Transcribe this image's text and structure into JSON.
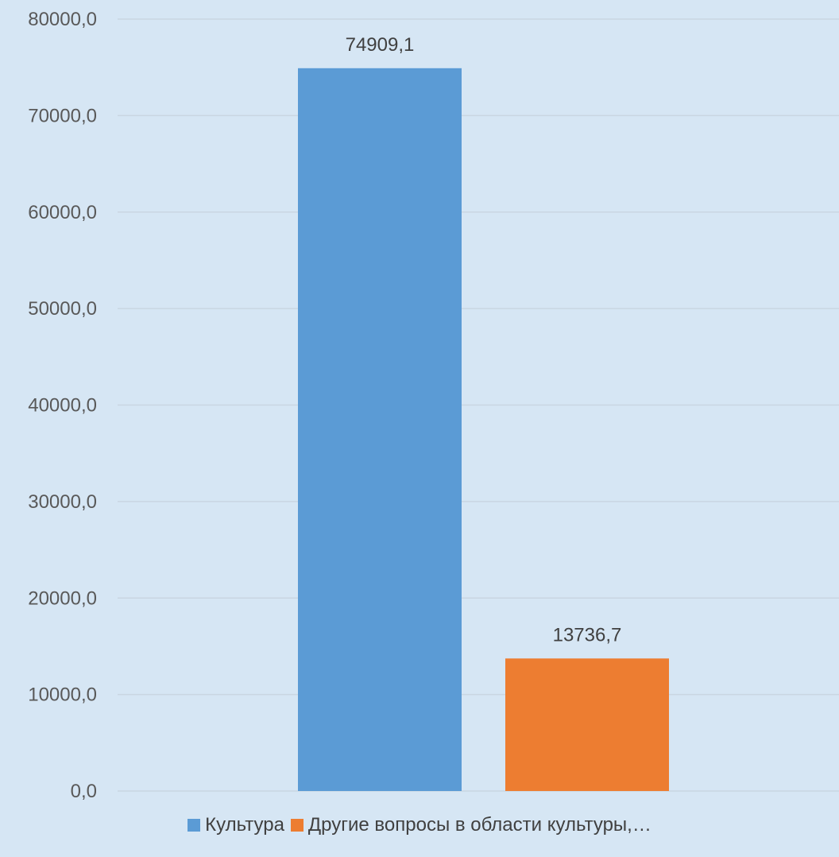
{
  "chart_data": {
    "type": "bar",
    "categories": [
      ""
    ],
    "series": [
      {
        "name": "Культура",
        "values": [
          74909.1
        ],
        "label": "74909,1",
        "color": "#5b9bd5"
      },
      {
        "name": "Другие вопросы в области культуры,…",
        "values": [
          13736.7
        ],
        "label": "13736,7",
        "color": "#ed7d31"
      }
    ],
    "yticks": [
      "0,0",
      "10000,0",
      "20000,0",
      "30000,0",
      "40000,0",
      "50000,0",
      "60000,0",
      "70000,0",
      "80000,0"
    ],
    "ylim": [
      0,
      80000
    ],
    "grid": true,
    "legend_position": "bottom",
    "background_color": "#d6e6f4",
    "gridline_color": "#c9d6e2"
  }
}
